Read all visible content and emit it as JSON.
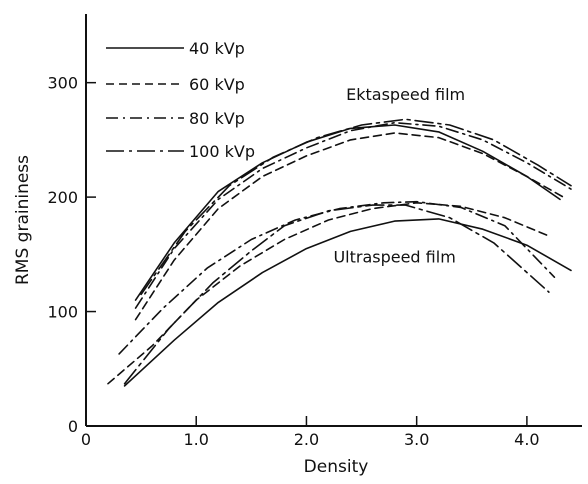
{
  "chart_data": {
    "type": "line",
    "title": "",
    "xlabel": "Density",
    "ylabel": "RMS graininess",
    "xlim": [
      0,
      4.5
    ],
    "ylim": [
      0,
      360
    ],
    "xticks": [
      {
        "value": 0,
        "label": "0"
      },
      {
        "value": 1.0,
        "label": "1.0"
      },
      {
        "value": 2.0,
        "label": "2.0"
      },
      {
        "value": 3.0,
        "label": "3.0"
      },
      {
        "value": 4.0,
        "label": "4.0"
      }
    ],
    "yticks": [
      {
        "value": 0,
        "label": "0"
      },
      {
        "value": 100,
        "label": "100"
      },
      {
        "value": 200,
        "label": "200"
      },
      {
        "value": 300,
        "label": "300"
      }
    ],
    "grid": false,
    "legend_position": "top-left",
    "annotations": [
      {
        "text": "Ektaspeed film",
        "x": 2.9,
        "y": 285
      },
      {
        "text": "Ultraspeed film",
        "x": 2.8,
        "y": 143
      }
    ],
    "series": [
      {
        "name": "40 kVp",
        "style": "solid",
        "curves": [
          {
            "film": "Ektaspeed",
            "x": [
              0.45,
              0.8,
              1.2,
              1.6,
              2.0,
              2.4,
              2.8,
              3.2,
              3.6,
              4.0,
              4.3
            ],
            "y": [
              110,
              160,
              205,
              230,
              248,
              260,
              263,
              257,
              240,
              218,
              198
            ]
          },
          {
            "film": "Ultraspeed",
            "x": [
              0.35,
              0.8,
              1.2,
              1.6,
              2.0,
              2.4,
              2.8,
              3.2,
              3.6,
              4.0,
              4.4
            ],
            "y": [
              35,
              75,
              108,
              134,
              155,
              170,
              179,
              181,
              172,
              158,
              136
            ]
          }
        ]
      },
      {
        "name": "60 kVp",
        "style": "dashed",
        "curves": [
          {
            "film": "Ektaspeed",
            "x": [
              0.45,
              0.8,
              1.2,
              1.6,
              2.0,
              2.4,
              2.8,
              3.2,
              3.6,
              4.0,
              4.35
            ],
            "y": [
              93,
              145,
              190,
              218,
              236,
              250,
              256,
              252,
              238,
              218,
              199
            ]
          },
          {
            "film": "Ultraspeed",
            "x": [
              0.2,
              0.6,
              1.0,
              1.4,
              1.8,
              2.2,
              2.6,
              3.0,
              3.4,
              3.8,
              4.2
            ],
            "y": [
              37,
              70,
              110,
              140,
              163,
              180,
              190,
              195,
              192,
              182,
              166
            ]
          }
        ]
      },
      {
        "name": "80 kVp",
        "style": "dashdot",
        "curves": [
          {
            "film": "Ektaspeed",
            "x": [
              0.45,
              0.8,
              1.2,
              1.6,
              2.0,
              2.4,
              2.8,
              3.2,
              3.6,
              4.0,
              4.4
            ],
            "y": [
              103,
              155,
              198,
              225,
              243,
              258,
              265,
              262,
              250,
              230,
              207
            ]
          },
          {
            "film": "Ultraspeed",
            "x": [
              0.3,
              0.7,
              1.1,
              1.5,
              1.9,
              2.3,
              2.7,
              3.0,
              3.4,
              3.8,
              4.25
            ],
            "y": [
              63,
              103,
              138,
              163,
              180,
              190,
              195,
              196,
              191,
              175,
              130
            ]
          }
        ]
      },
      {
        "name": "100 kVp",
        "style": "longdashdot",
        "curves": [
          {
            "film": "Ektaspeed",
            "x": [
              0.5,
              0.9,
              1.3,
              1.7,
              2.1,
              2.5,
              2.9,
              3.3,
              3.7,
              4.1,
              4.4
            ],
            "y": [
              115,
              170,
              210,
              235,
              252,
              263,
              268,
              263,
              250,
              228,
              210
            ]
          },
          {
            "film": "Ultraspeed",
            "x": [
              0.35,
              0.75,
              1.15,
              1.5,
              1.8,
              2.2,
              2.6,
              2.9,
              3.3,
              3.7,
              4.2
            ],
            "y": [
              37,
              85,
              125,
              153,
              175,
              188,
              193,
              193,
              182,
              160,
              117
            ]
          }
        ]
      }
    ],
    "colors": {
      "line": "#111111",
      "background": "#ffffff"
    }
  }
}
